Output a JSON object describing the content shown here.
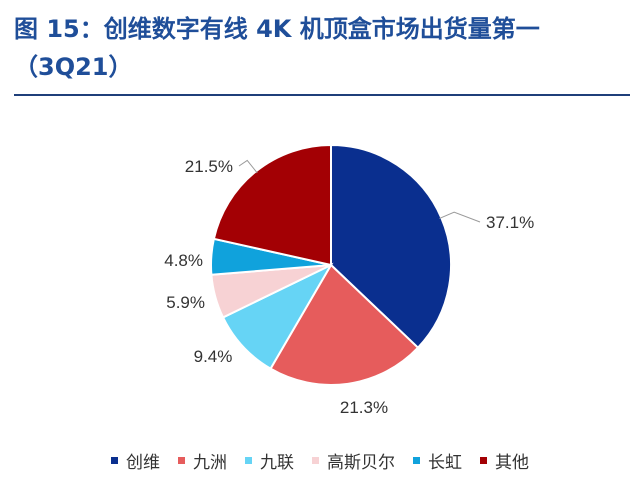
{
  "figure": {
    "title_line1": "图 15：创维数字有线 4K 机顶盒市场出货量第一",
    "title_line2": "（3Q21）"
  },
  "chart_data": {
    "type": "pie",
    "start_angle_deg": 0,
    "direction": "clockwise",
    "slices": [
      {
        "name": "创维",
        "value": 37.1,
        "label": "37.1%",
        "color": "#0a2f8f"
      },
      {
        "name": "九洲",
        "value": 21.3,
        "label": "21.3%",
        "color": "#e65c5c"
      },
      {
        "name": "九联",
        "value": 9.4,
        "label": "9.4%",
        "color": "#66d4f5"
      },
      {
        "name": "高斯贝尔",
        "value": 5.9,
        "label": "5.9%",
        "color": "#f7d2d4"
      },
      {
        "name": "长虹",
        "value": 4.8,
        "label": "4.8%",
        "color": "#10a2dc"
      },
      {
        "name": "其他",
        "value": 21.5,
        "label": "21.5%",
        "color": "#a30004"
      }
    ],
    "legend_position": "bottom"
  }
}
